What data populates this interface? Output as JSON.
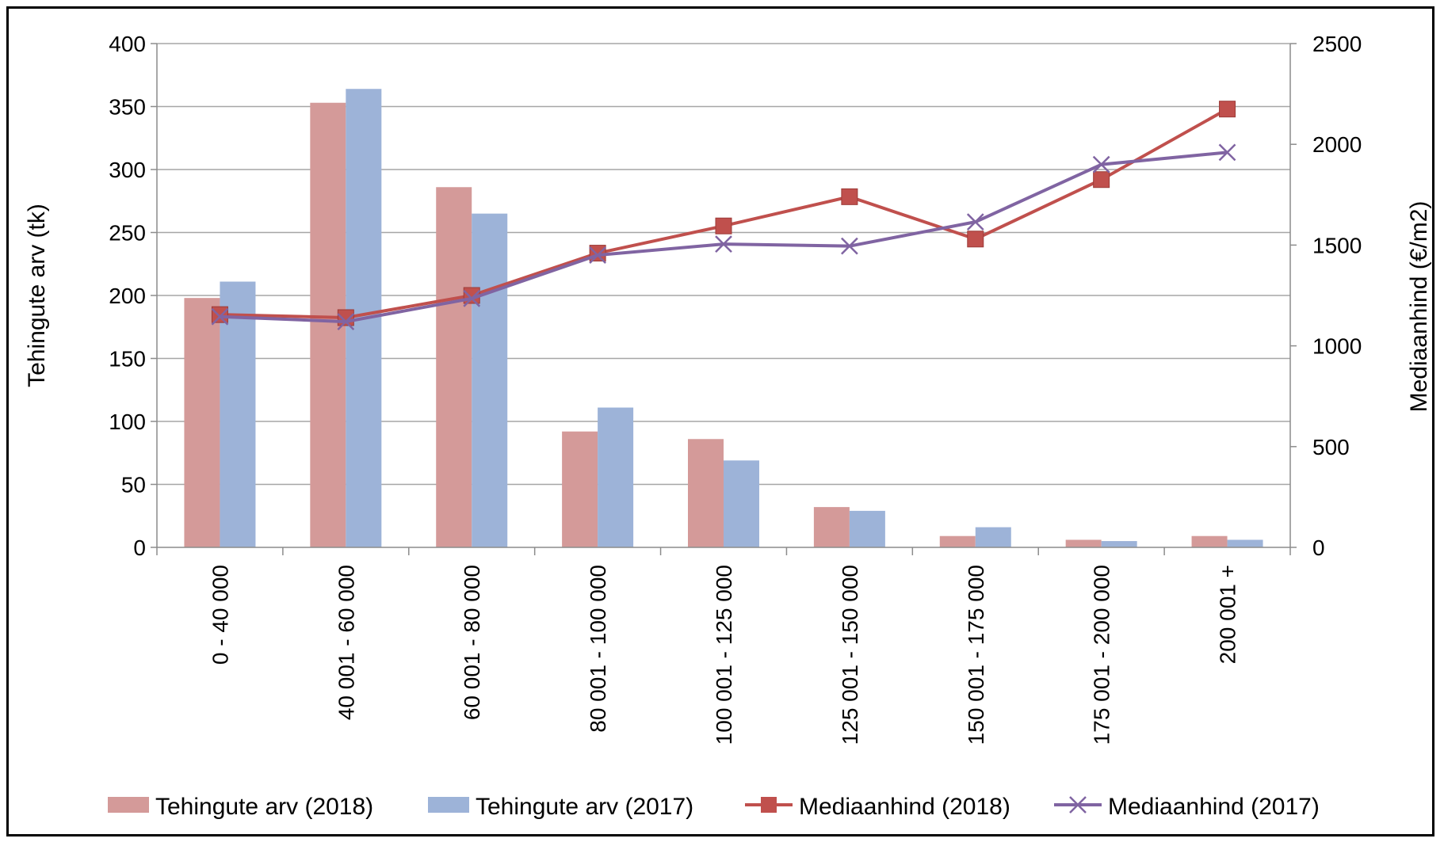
{
  "chart_data": {
    "type": "bar",
    "categories": [
      "0 - 40 000",
      "40 001 - 60 000",
      "60 001 - 80 000",
      "80 001 - 100 000",
      "100 001 - 125 000",
      "125 001 - 150 000",
      "150 001 - 175 000",
      "175 001 - 200 000",
      "200 001 +"
    ],
    "series": [
      {
        "name": "Tehingute arv (2018)",
        "kind": "bar",
        "axis": "left",
        "color": "#d49a99",
        "values": [
          198,
          353,
          286,
          92,
          86,
          32,
          9,
          6,
          9
        ]
      },
      {
        "name": "Tehingute arv (2017)",
        "kind": "bar",
        "axis": "left",
        "color": "#9db3d8",
        "values": [
          211,
          364,
          265,
          111,
          69,
          29,
          16,
          5,
          6
        ]
      },
      {
        "name": "Mediaanhind (2018)",
        "kind": "line",
        "marker": "square",
        "axis": "right",
        "color": "#c0504d",
        "values": [
          1155,
          1140,
          1250,
          1460,
          1595,
          1740,
          1530,
          1825,
          2175
        ]
      },
      {
        "name": "Mediaanhind (2017)",
        "kind": "line",
        "marker": "x",
        "axis": "right",
        "color": "#8064a2",
        "values": [
          1145,
          1120,
          1235,
          1450,
          1505,
          1495,
          1615,
          1900,
          1960
        ]
      }
    ],
    "ylabel": "Tehingute arv (tk)",
    "y2label": "Mediaanhind (€/m2)",
    "ylim": [
      0,
      400
    ],
    "y2lim": [
      0,
      2500
    ],
    "yticks": [
      "0",
      "50",
      "100",
      "150",
      "200",
      "250",
      "300",
      "350",
      "400"
    ],
    "y2ticks": [
      "0",
      "500",
      "1000",
      "1500",
      "2000",
      "2500"
    ],
    "grid": true,
    "legend": "bottom"
  }
}
